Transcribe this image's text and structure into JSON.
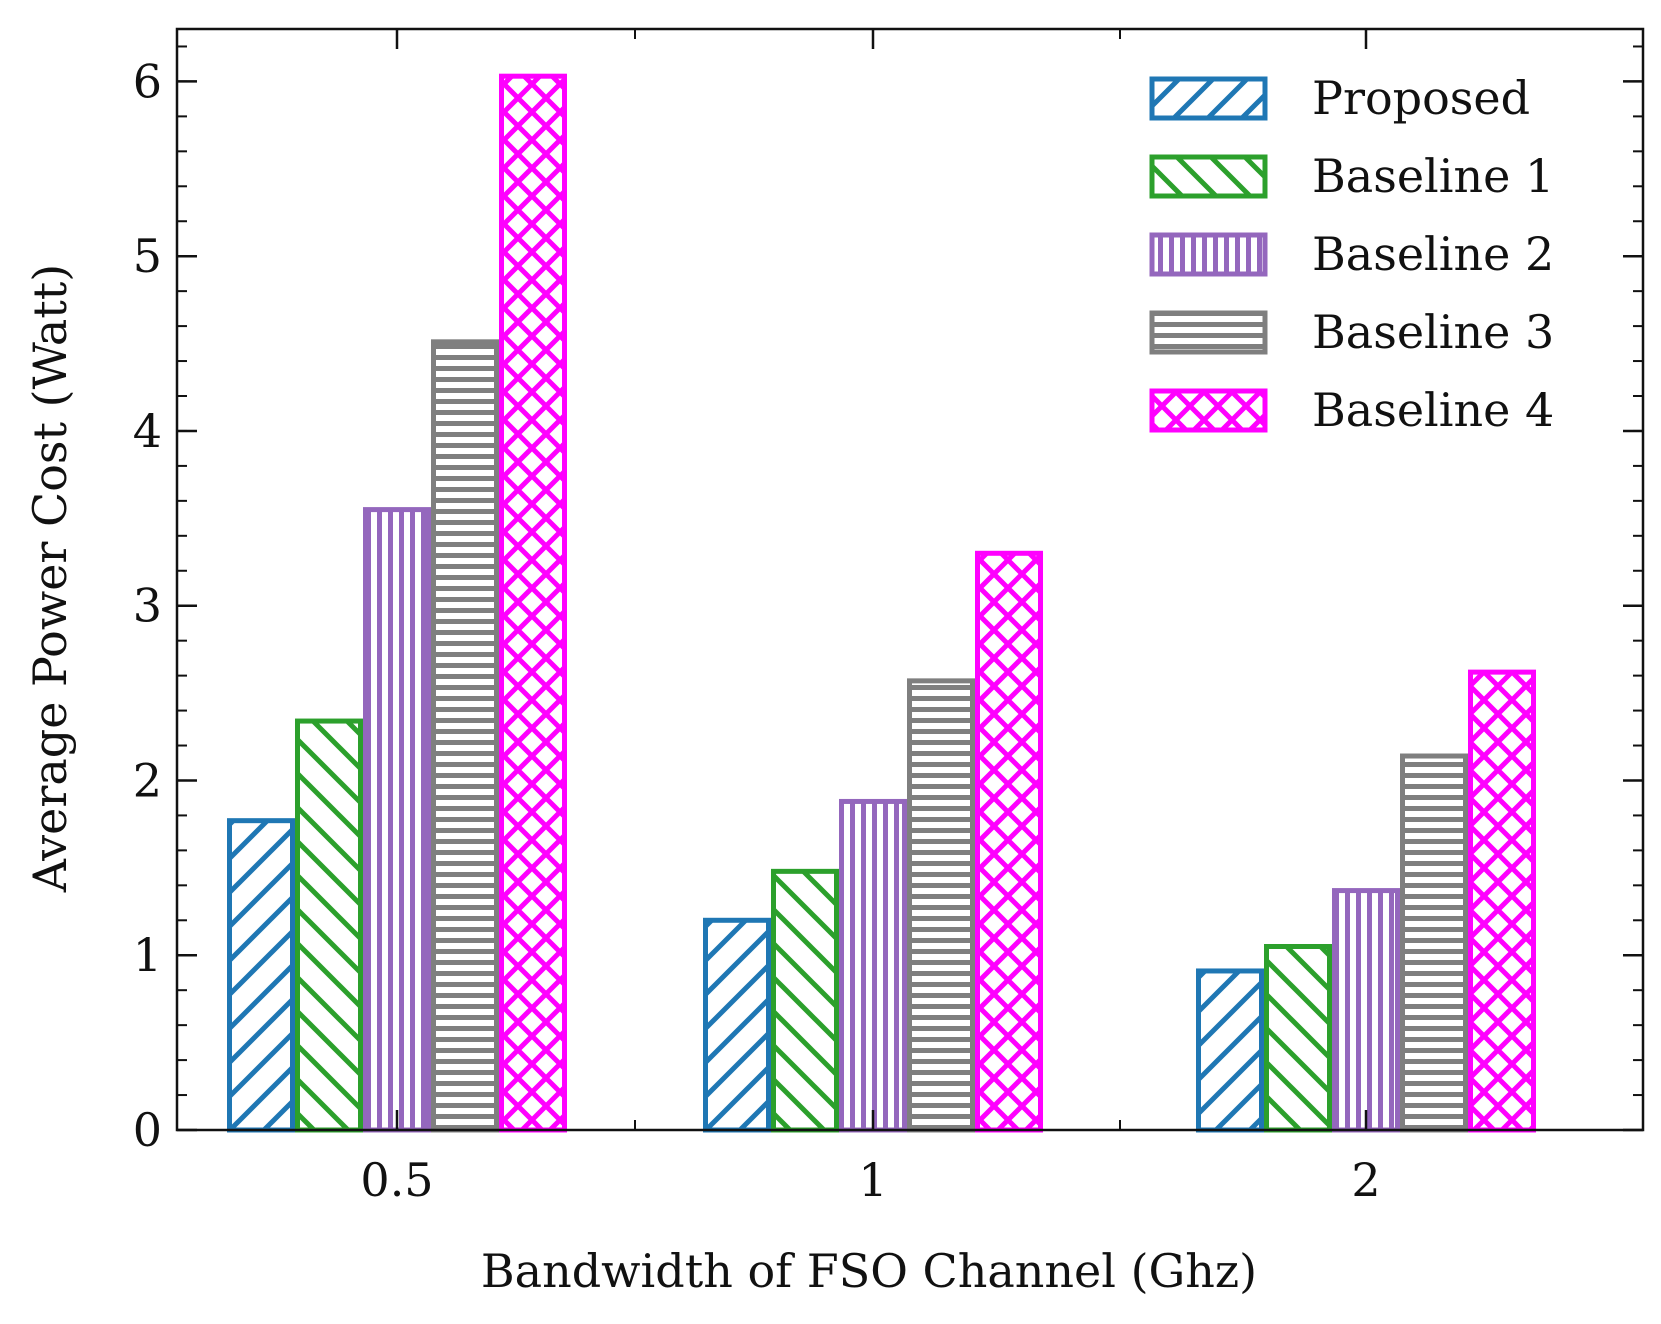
{
  "chart_data": {
    "type": "bar",
    "title": "",
    "xlabel": "Bandwidth of FSO Channel (Ghz)",
    "ylabel": "Average Power Cost (Watt)",
    "categories": [
      "0.5",
      "1",
      "2"
    ],
    "ylim": [
      0,
      6.3
    ],
    "yticks": [
      "0",
      "1",
      "2",
      "3",
      "4",
      "5",
      "6"
    ],
    "legend_position": "top-right",
    "grid": false,
    "series": [
      {
        "name": "Proposed",
        "values": [
          1.77,
          1.2,
          0.91
        ],
        "color": "#1f77b4",
        "hatch": "diagonal-up"
      },
      {
        "name": "Baseline 1",
        "values": [
          2.34,
          1.48,
          1.05
        ],
        "color": "#2ca02c",
        "hatch": "diagonal-down"
      },
      {
        "name": "Baseline 2",
        "values": [
          3.55,
          1.88,
          1.37
        ],
        "color": "#9467bd",
        "hatch": "vertical"
      },
      {
        "name": "Baseline 3",
        "values": [
          4.51,
          2.57,
          2.14
        ],
        "color": "#7f7f7f",
        "hatch": "horizontal"
      },
      {
        "name": "Baseline 4",
        "values": [
          6.03,
          3.3,
          2.62
        ],
        "color": "#ff00ff",
        "hatch": "crosshatch"
      }
    ]
  }
}
